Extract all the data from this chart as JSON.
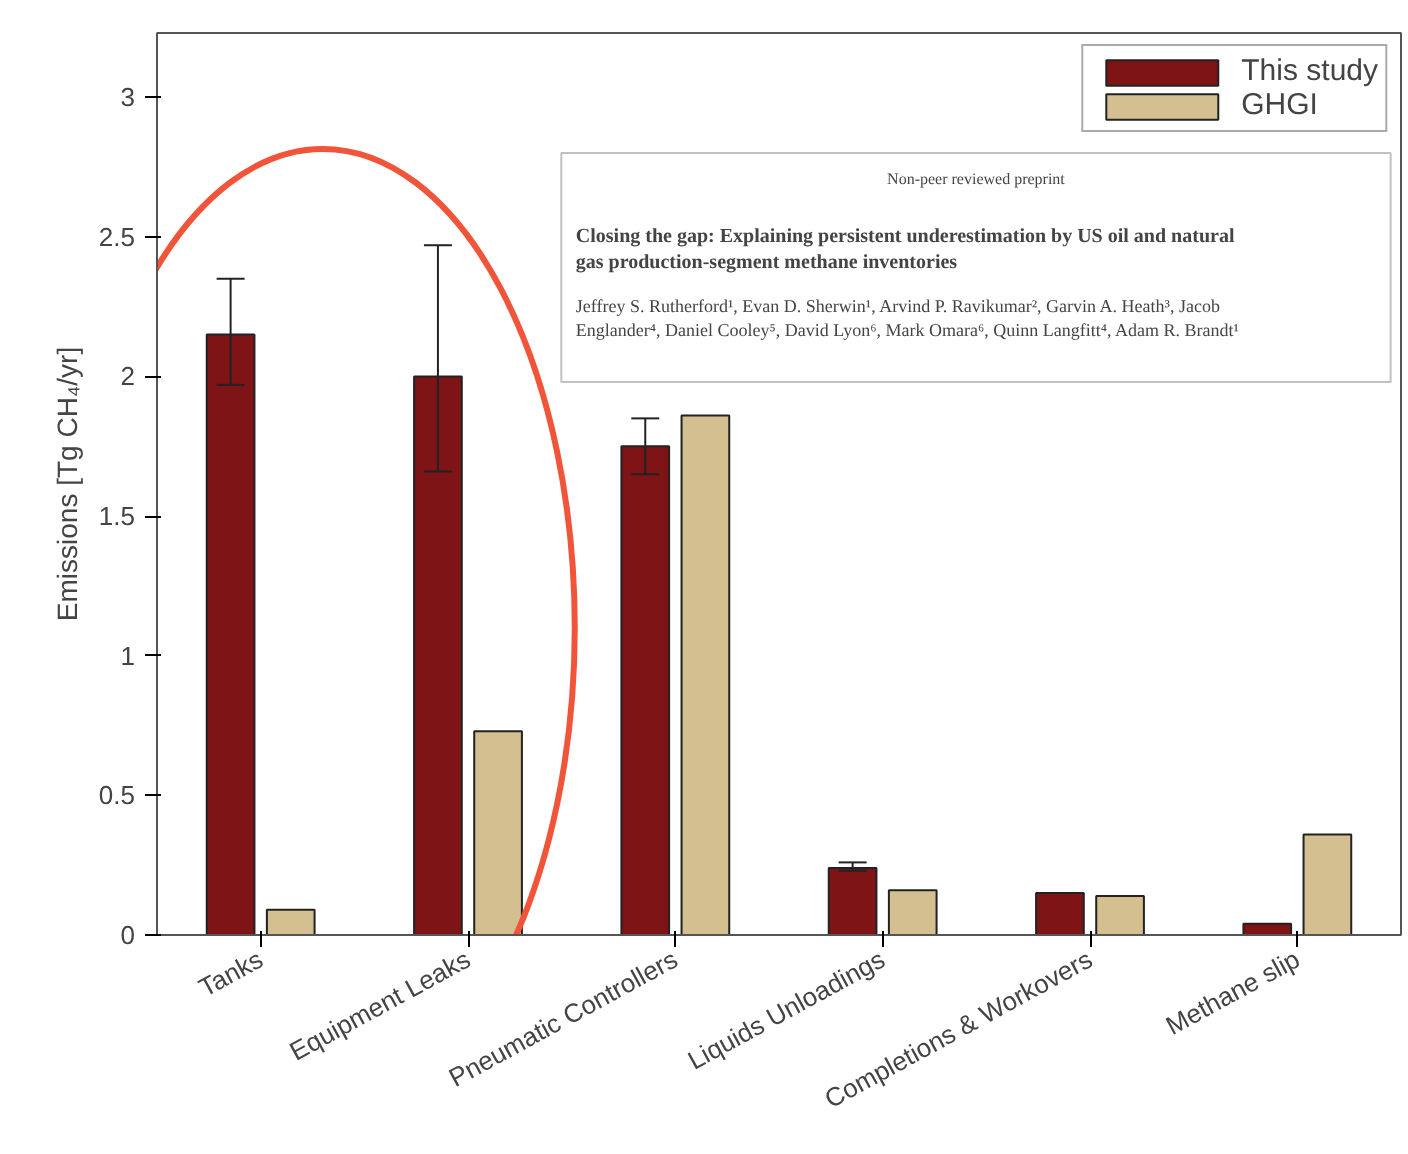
{
  "chart_data": {
    "type": "bar",
    "ylabel": "Emissions [Tg CH₄/yr]",
    "categories": [
      "Tanks",
      "Equipment Leaks",
      "Pneumatic Controllers",
      "Liquids Unloadings",
      "Completions & Workovers",
      "Methane slip"
    ],
    "series": [
      {
        "name": "This study",
        "color": "#7f1416",
        "values": [
          2.15,
          2.0,
          1.75,
          0.24,
          0.15,
          0.04
        ],
        "errors": [
          [
            1.97,
            2.35
          ],
          [
            1.66,
            2.47
          ],
          [
            1.65,
            1.85
          ],
          [
            0.23,
            0.26
          ],
          null,
          null
        ]
      },
      {
        "name": "GHGI",
        "color": "#d3bf8f",
        "values": [
          0.09,
          0.73,
          1.86,
          0.16,
          0.14,
          0.36
        ]
      }
    ],
    "ylim": [
      0,
      3.23
    ],
    "yticks": [
      0,
      0.5,
      1,
      1.5,
      2,
      2.5,
      3
    ],
    "grid": false,
    "legend": "top right",
    "annotations": [
      "Non-peer reviewed preprint",
      "Closing the gap: Explaining persistent underestimation by US oil and natural gas production-segment methane inventories",
      "Jeffrey S. Rutherford¹, Evan D. Sherwin¹, Arvind P. Ravikumar², Garvin A. Heath³, Jacob Englander⁴, Daniel Cooley⁵, David Lyon⁶, Mark Omara⁶, Quinn Langfitt⁴, Adam R. Brandt¹"
    ]
  }
}
